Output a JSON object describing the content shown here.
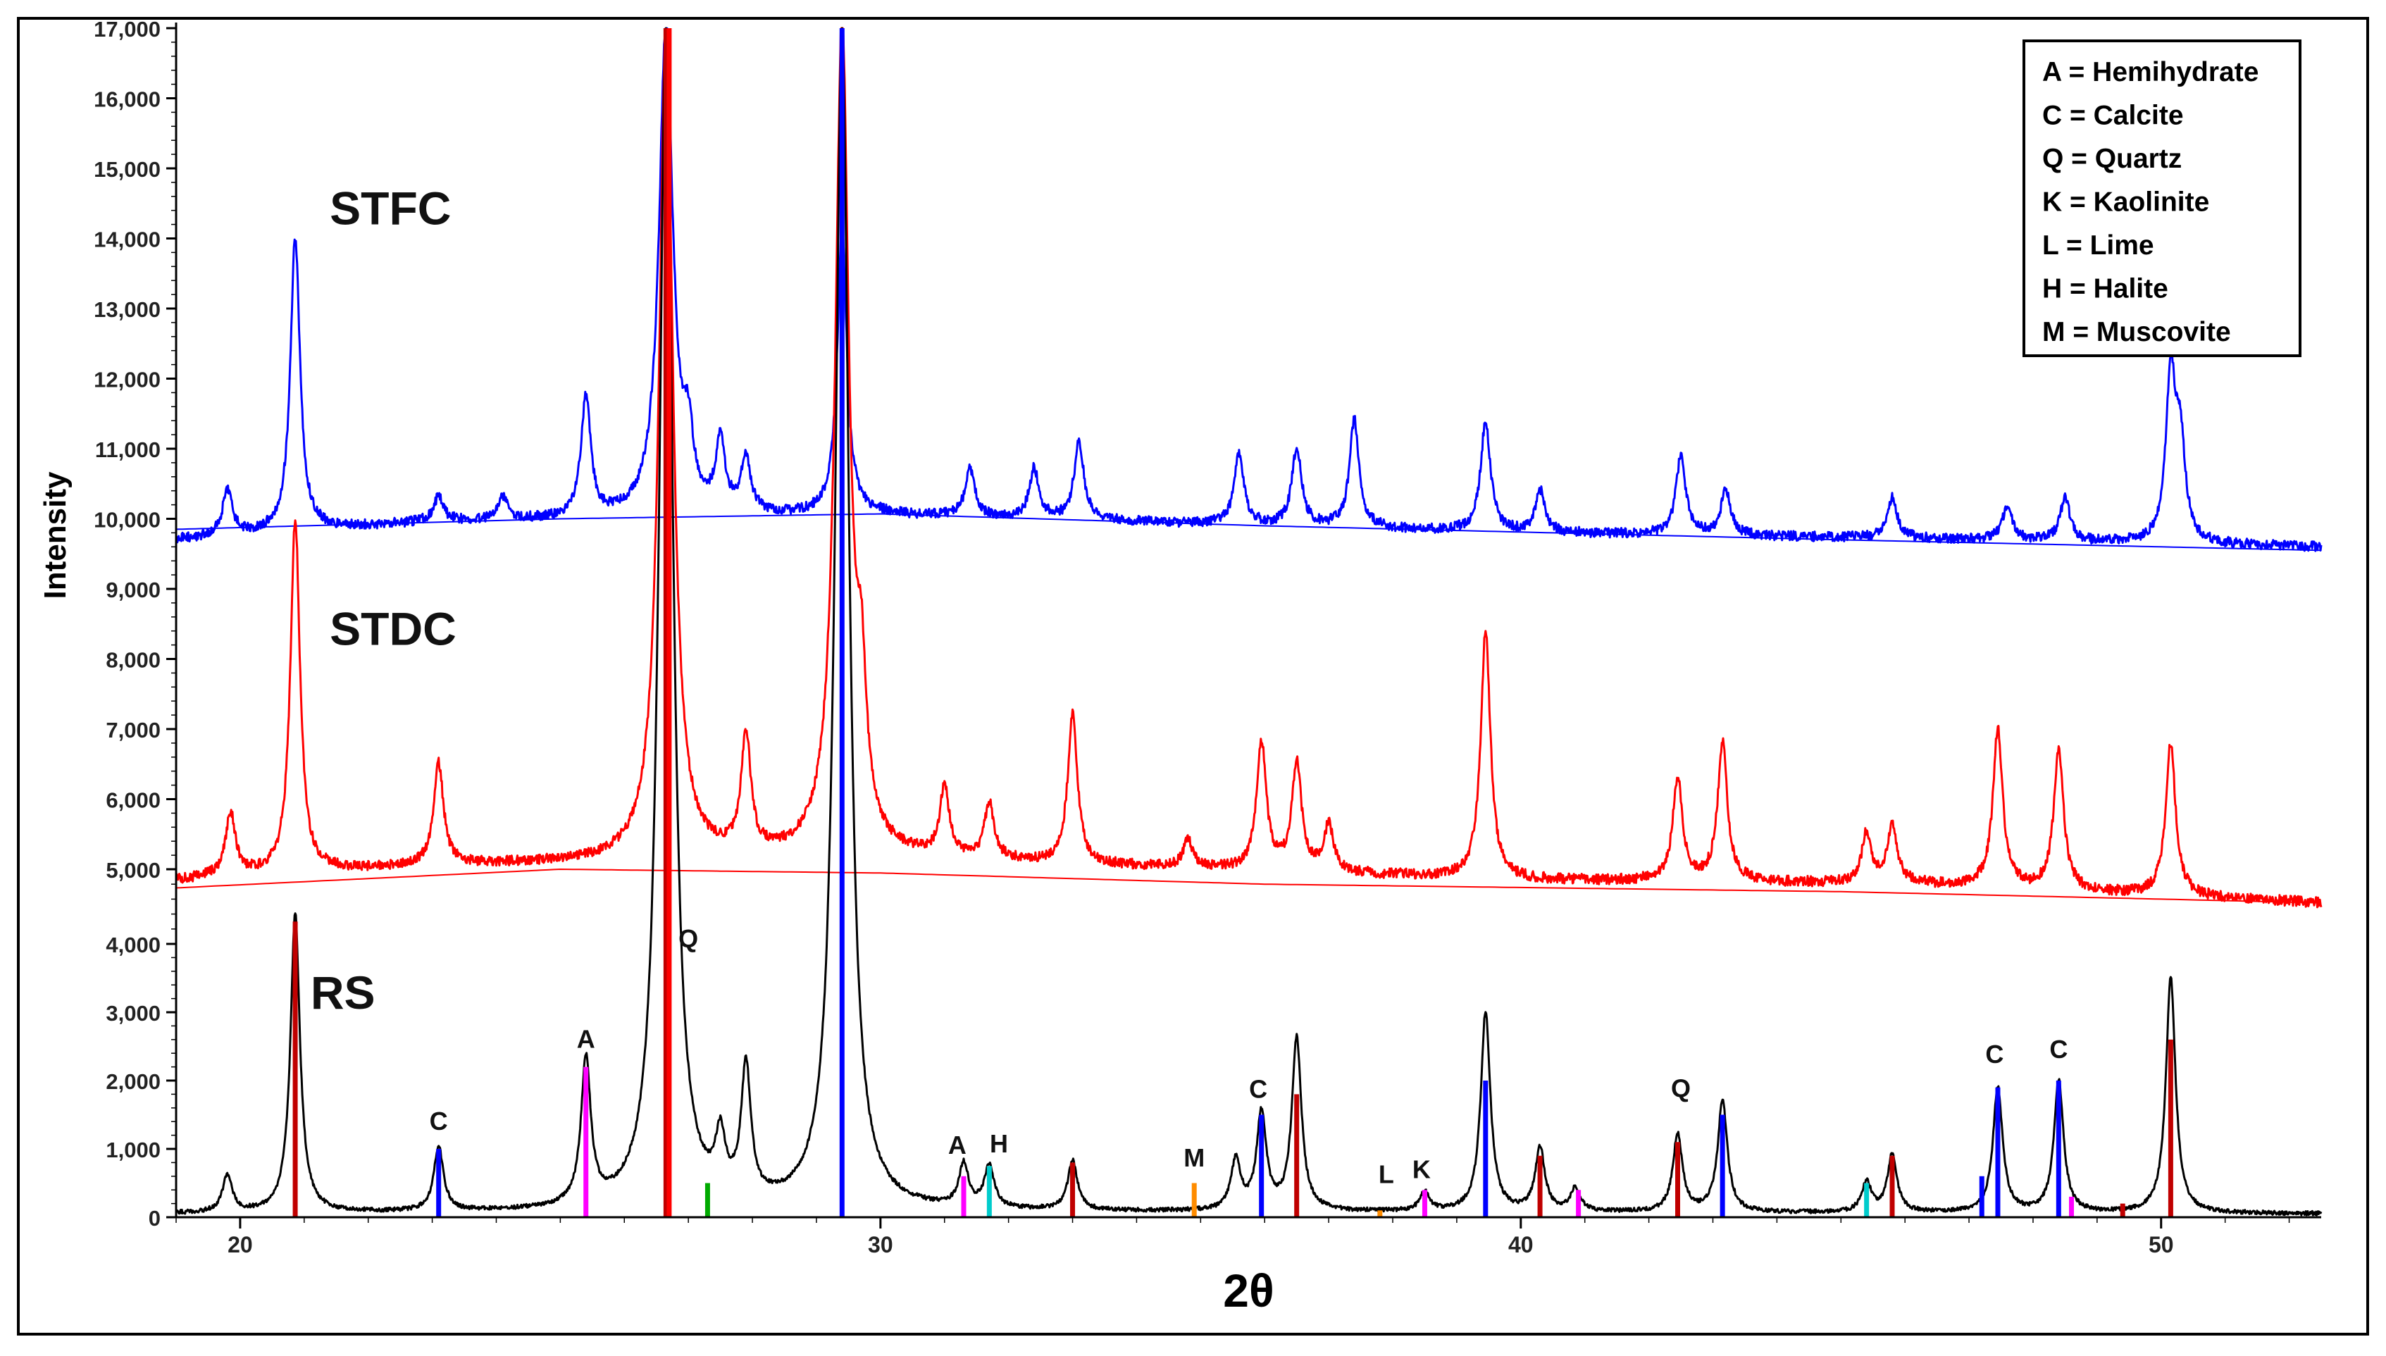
{
  "chart_data": {
    "type": "line",
    "xlabel": "2θ",
    "ylabel": "Intensity",
    "xlim": [
      19,
      52.5
    ],
    "x_ticks": [
      20,
      30,
      40,
      50
    ],
    "x_tick_labels": [
      "20",
      "30",
      "40",
      "50"
    ],
    "y_tick_labels": [
      "17,000",
      "16,000",
      "15,000",
      "14,000",
      "13,000",
      "12,000",
      "11,000",
      "10,000",
      "9,000",
      "8,000",
      "7,000",
      "6,000",
      "5,000",
      "4,000",
      "3,000",
      "2,000",
      "1,000",
      "0"
    ],
    "grid": false,
    "legend_position": "top-right",
    "legend": [
      "A = Hemihydrate",
      "C = Calcite",
      "Q = Quartz",
      "K = Kaolinite",
      "L = Lime",
      "H = Halite",
      "M = Muscovite"
    ],
    "series": [
      {
        "name": "STFC",
        "color": "#0000ff",
        "baseline": [
          [
            19,
            9700
          ],
          [
            23,
            9950
          ],
          [
            30,
            10050
          ],
          [
            40,
            9800
          ],
          [
            46,
            9720
          ],
          [
            52.5,
            9600
          ]
        ],
        "background_curve": [
          [
            19,
            9850
          ],
          [
            25,
            10000
          ],
          [
            30,
            10070
          ],
          [
            36,
            9900
          ],
          [
            45,
            9700
          ],
          [
            52.5,
            9550
          ]
        ],
        "peaks": [
          {
            "x": 19.8,
            "y": 10400
          },
          {
            "x": 20.86,
            "y": 14000
          },
          {
            "x": 23.1,
            "y": 10300
          },
          {
            "x": 24.1,
            "y": 10300
          },
          {
            "x": 25.4,
            "y": 11700
          },
          {
            "x": 26.65,
            "y": 17000
          },
          {
            "x": 27.0,
            "y": 10900
          },
          {
            "x": 27.5,
            "y": 11000
          },
          {
            "x": 27.9,
            "y": 10800
          },
          {
            "x": 29.4,
            "y": 14100
          },
          {
            "x": 31.4,
            "y": 10700
          },
          {
            "x": 32.4,
            "y": 10700
          },
          {
            "x": 33.1,
            "y": 11100
          },
          {
            "x": 35.6,
            "y": 10900
          },
          {
            "x": 36.5,
            "y": 11000
          },
          {
            "x": 37.4,
            "y": 11400
          },
          {
            "x": 39.45,
            "y": 11400
          },
          {
            "x": 40.3,
            "y": 10400
          },
          {
            "x": 42.5,
            "y": 10900
          },
          {
            "x": 43.2,
            "y": 10400
          },
          {
            "x": 45.8,
            "y": 10300
          },
          {
            "x": 47.6,
            "y": 10200
          },
          {
            "x": 48.5,
            "y": 10300
          },
          {
            "x": 50.15,
            "y": 12000
          },
          {
            "x": 50.3,
            "y": 11000
          }
        ]
      },
      {
        "name": "STDC",
        "color": "#ff0000",
        "baseline": [
          [
            19,
            4850
          ],
          [
            23,
            5050
          ],
          [
            30,
            5150
          ],
          [
            40,
            4850
          ],
          [
            46,
            4800
          ],
          [
            52.5,
            4550
          ]
        ],
        "background_curve": [
          [
            19,
            4750
          ],
          [
            25,
            5000
          ],
          [
            30,
            4950
          ],
          [
            36,
            4800
          ],
          [
            45,
            4700
          ],
          [
            52.5,
            4550
          ]
        ],
        "peaks": [
          {
            "x": 19.85,
            "y": 5800
          },
          {
            "x": 20.86,
            "y": 10000
          },
          {
            "x": 23.1,
            "y": 6500
          },
          {
            "x": 26.65,
            "y": 17000
          },
          {
            "x": 27.9,
            "y": 6800
          },
          {
            "x": 29.4,
            "y": 17000
          },
          {
            "x": 29.7,
            "y": 7000
          },
          {
            "x": 31.0,
            "y": 6100
          },
          {
            "x": 31.7,
            "y": 5900
          },
          {
            "x": 33.0,
            "y": 7200
          },
          {
            "x": 34.8,
            "y": 5400
          },
          {
            "x": 35.95,
            "y": 6800
          },
          {
            "x": 36.5,
            "y": 6500
          },
          {
            "x": 37.0,
            "y": 5600
          },
          {
            "x": 39.45,
            "y": 8400
          },
          {
            "x": 42.45,
            "y": 6300
          },
          {
            "x": 43.15,
            "y": 6800
          },
          {
            "x": 45.4,
            "y": 5500
          },
          {
            "x": 45.8,
            "y": 5600
          },
          {
            "x": 47.45,
            "y": 7000
          },
          {
            "x": 48.4,
            "y": 6700
          },
          {
            "x": 50.15,
            "y": 6800
          }
        ]
      },
      {
        "name": "RS",
        "color": "#000000",
        "baseline": [
          [
            19,
            50
          ],
          [
            30,
            80
          ],
          [
            52.5,
            50
          ]
        ],
        "peaks": [
          {
            "x": 19.8,
            "y": 600
          },
          {
            "x": 20.86,
            "y": 4400
          },
          {
            "x": 23.1,
            "y": 1000
          },
          {
            "x": 25.4,
            "y": 2200
          },
          {
            "x": 26.65,
            "y": 17000
          },
          {
            "x": 27.5,
            "y": 900
          },
          {
            "x": 27.9,
            "y": 2000
          },
          {
            "x": 29.4,
            "y": 17000
          },
          {
            "x": 31.3,
            "y": 700
          },
          {
            "x": 31.7,
            "y": 700
          },
          {
            "x": 33.0,
            "y": 800
          },
          {
            "x": 35.55,
            "y": 800
          },
          {
            "x": 35.95,
            "y": 1500
          },
          {
            "x": 36.5,
            "y": 2600
          },
          {
            "x": 38.5,
            "y": 350
          },
          {
            "x": 39.45,
            "y": 3000
          },
          {
            "x": 40.3,
            "y": 1000
          },
          {
            "x": 40.85,
            "y": 400
          },
          {
            "x": 42.45,
            "y": 1200
          },
          {
            "x": 43.15,
            "y": 1700
          },
          {
            "x": 45.4,
            "y": 500
          },
          {
            "x": 45.8,
            "y": 900
          },
          {
            "x": 47.45,
            "y": 1900
          },
          {
            "x": 48.4,
            "y": 2000
          },
          {
            "x": 50.15,
            "y": 3500
          }
        ]
      }
    ],
    "reference_sticks": [
      {
        "x": 20.86,
        "y": 4300,
        "color": "#c00000"
      },
      {
        "x": 23.1,
        "y": 1000,
        "color": "#0000ff"
      },
      {
        "x": 25.4,
        "y": 2200,
        "color": "#ff00ff"
      },
      {
        "x": 26.65,
        "y": 17000,
        "color": "#c00000"
      },
      {
        "x": 26.7,
        "y": 17000,
        "color": "#ff0000"
      },
      {
        "x": 27.3,
        "y": 500,
        "color": "#00aa00"
      },
      {
        "x": 29.4,
        "y": 17000,
        "color": "#0000ff"
      },
      {
        "x": 31.3,
        "y": 600,
        "color": "#ff00ff"
      },
      {
        "x": 31.7,
        "y": 750,
        "color": "#00cccc"
      },
      {
        "x": 33.0,
        "y": 800,
        "color": "#c00000"
      },
      {
        "x": 34.9,
        "y": 500,
        "color": "#ff8c00"
      },
      {
        "x": 35.95,
        "y": 1500,
        "color": "#0000ff"
      },
      {
        "x": 36.5,
        "y": 1800,
        "color": "#c00000"
      },
      {
        "x": 37.8,
        "y": 100,
        "color": "#ff8c00"
      },
      {
        "x": 38.5,
        "y": 400,
        "color": "#ff00ff"
      },
      {
        "x": 39.45,
        "y": 2000,
        "color": "#0000ff"
      },
      {
        "x": 40.3,
        "y": 900,
        "color": "#c00000"
      },
      {
        "x": 40.9,
        "y": 400,
        "color": "#ff00ff"
      },
      {
        "x": 42.45,
        "y": 1100,
        "color": "#c00000"
      },
      {
        "x": 43.15,
        "y": 1500,
        "color": "#0000ff"
      },
      {
        "x": 45.4,
        "y": 500,
        "color": "#00cccc"
      },
      {
        "x": 45.8,
        "y": 900,
        "color": "#c00000"
      },
      {
        "x": 47.2,
        "y": 600,
        "color": "#0000ff"
      },
      {
        "x": 47.45,
        "y": 1900,
        "color": "#0000ff"
      },
      {
        "x": 48.4,
        "y": 2000,
        "color": "#0000ff"
      },
      {
        "x": 48.6,
        "y": 300,
        "color": "#ff00ff"
      },
      {
        "x": 49.4,
        "y": 200,
        "color": "#c00000"
      },
      {
        "x": 50.15,
        "y": 2600,
        "color": "#c00000"
      }
    ],
    "annotations": [
      {
        "text": "STFC",
        "x": 21.4,
        "y": 14200
      },
      {
        "text": "STDC",
        "x": 21.4,
        "y": 8200
      },
      {
        "text": "RS",
        "x": 21.1,
        "y": 3050
      },
      {
        "text": "Q",
        "x": 27.0,
        "y": 3950
      },
      {
        "text": "A",
        "x": 25.4,
        "y": 2480
      },
      {
        "text": "C",
        "x": 23.1,
        "y": 1280
      },
      {
        "text": "A",
        "x": 31.2,
        "y": 930
      },
      {
        "text": "H",
        "x": 31.85,
        "y": 950
      },
      {
        "text": "M",
        "x": 34.9,
        "y": 740
      },
      {
        "text": "C",
        "x": 35.9,
        "y": 1750
      },
      {
        "text": "L",
        "x": 37.9,
        "y": 500
      },
      {
        "text": "K",
        "x": 38.45,
        "y": 570
      },
      {
        "text": "Q",
        "x": 42.5,
        "y": 1760
      },
      {
        "text": "C",
        "x": 47.4,
        "y": 2260
      },
      {
        "text": "C",
        "x": 48.4,
        "y": 2330
      }
    ]
  }
}
